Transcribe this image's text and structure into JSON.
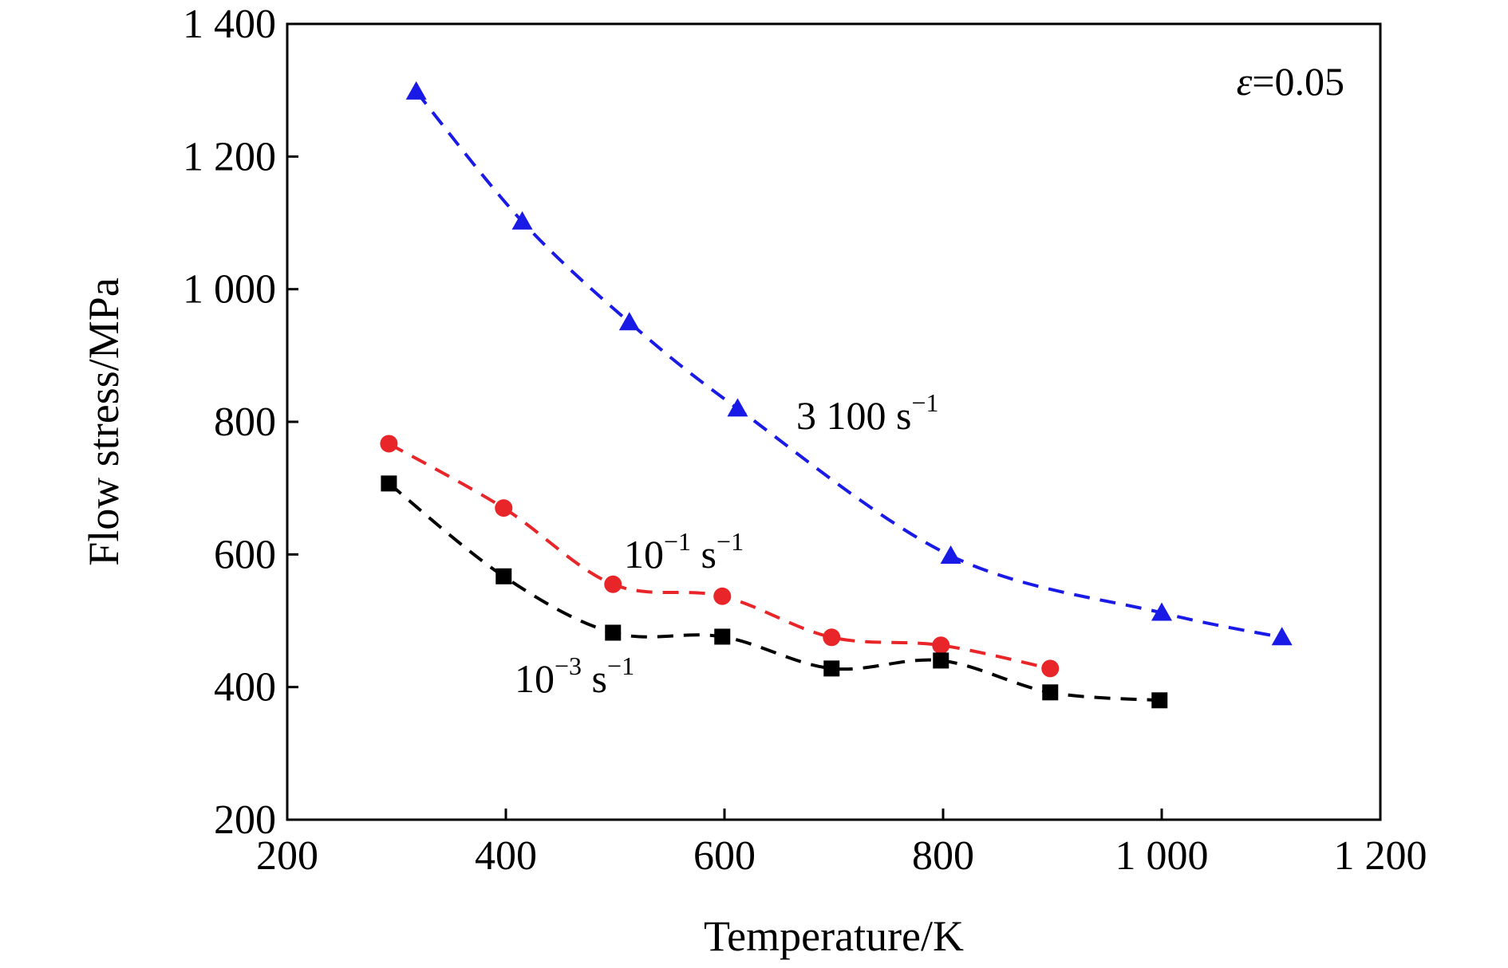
{
  "chart_data": {
    "type": "line",
    "title": "",
    "xlabel": "Temperature/K",
    "ylabel": "Flow stress/MPa",
    "xlim": [
      200,
      1200
    ],
    "ylim": [
      200,
      1400
    ],
    "xticks": [
      200,
      400,
      600,
      800,
      1000,
      1200
    ],
    "yticks": [
      200,
      400,
      600,
      800,
      1000,
      1200,
      1400
    ],
    "xtick_labels": [
      "200",
      "400",
      "600",
      "800",
      "1 000",
      "1 200"
    ],
    "ytick_labels": [
      "200",
      "400",
      "600",
      "800",
      "1 000",
      "1 200",
      "1 400"
    ],
    "grid": false,
    "legend": "none",
    "annotation": {
      "symbol": "ε",
      "text": "=0.05"
    },
    "series": [
      {
        "label_base": "3 100 s",
        "label_exp": "−1",
        "color": "#1a1ae6",
        "marker": "triangle",
        "line_style": "dashed",
        "x": [
          318,
          415,
          513,
          612,
          807,
          1000,
          1110
        ],
        "y": [
          1298,
          1102,
          950,
          820,
          598,
          512,
          475
        ]
      },
      {
        "label_base": "10",
        "label_exp": "−1",
        "label_unit": " s",
        "label_unit_exp": "−1",
        "color": "#e8262a",
        "marker": "circle",
        "line_style": "dashed",
        "x": [
          293,
          398,
          498,
          598,
          698,
          798,
          898
        ],
        "y": [
          767,
          670,
          555,
          537,
          475,
          463,
          428
        ]
      },
      {
        "label_base": "10",
        "label_exp": "−3",
        "label_unit": " s",
        "label_unit_exp": "−1",
        "color": "#000000",
        "marker": "square",
        "line_style": "dashed",
        "x": [
          293,
          398,
          498,
          598,
          698,
          798,
          898,
          998
        ],
        "y": [
          707,
          567,
          482,
          476,
          428,
          440,
          392,
          380
        ]
      }
    ]
  }
}
